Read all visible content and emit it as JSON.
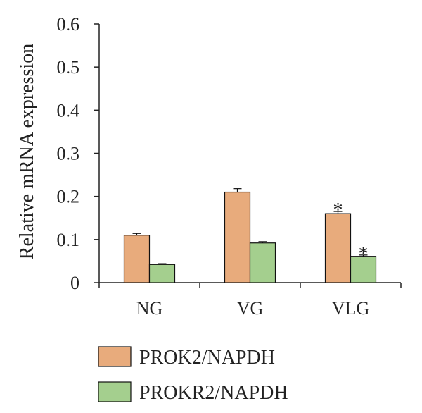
{
  "chart_data": {
    "type": "bar",
    "title": "",
    "xlabel": "",
    "ylabel": "Relative mRNA expression",
    "ylim": [
      0,
      0.6
    ],
    "yticks": [
      "0",
      "0.1",
      "0.2",
      "0.3",
      "0.4",
      "0.5",
      "0.6"
    ],
    "categories": [
      "NG",
      "VG",
      "VLG"
    ],
    "grid": false,
    "legend_position": "bottom",
    "series": [
      {
        "name": "PROK2/NAPDH",
        "color": "#e8ab7c",
        "values": [
          0.11,
          0.21,
          0.16
        ],
        "errors": [
          0.004,
          0.008,
          0.005
        ],
        "annotations": [
          "",
          "",
          "*"
        ]
      },
      {
        "name": "PROKR2/NAPDH",
        "color": "#a4cf8e",
        "values": [
          0.042,
          0.092,
          0.061
        ],
        "errors": [
          0.002,
          0.003,
          0.003
        ],
        "annotations": [
          "",
          "",
          "*"
        ]
      }
    ]
  }
}
